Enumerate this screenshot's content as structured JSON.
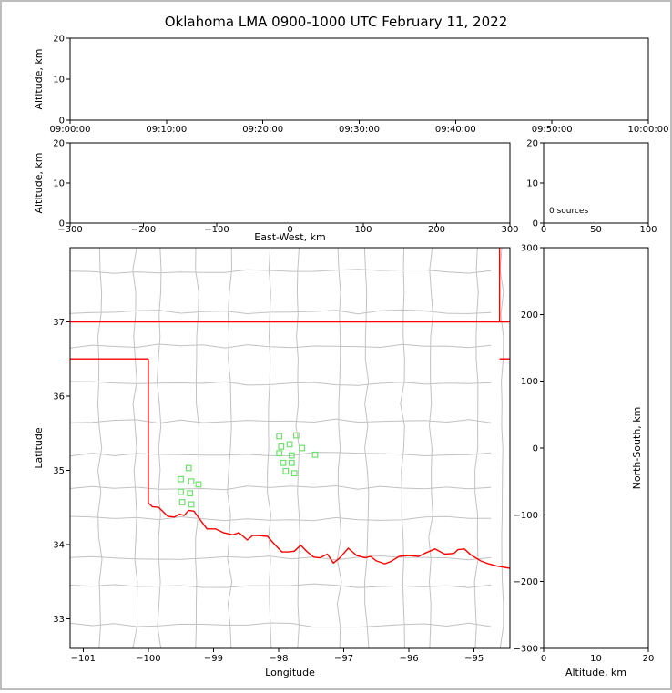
{
  "title": "Oklahoma LMA 0900-1000 UTC February 11, 2022",
  "colors": {
    "state_border": "#ff0000",
    "county_line": "#c2c2c2",
    "station_marker": "#6fdf6f",
    "axis": "#000000",
    "background": "#ffffff",
    "frame_border": "#bdbdbd"
  },
  "chart_data": [
    {
      "id": "time_height",
      "type": "scatter",
      "position": "top",
      "xlabel": "",
      "ylabel": "Altitude, km",
      "x_tick_labels": [
        "09:00:00",
        "09:10:00",
        "09:20:00",
        "09:30:00",
        "09:40:00",
        "09:50:00",
        "10:00:00"
      ],
      "ylim": [
        0,
        20
      ],
      "yticks": [
        0,
        10,
        20
      ],
      "points": []
    },
    {
      "id": "ew_height",
      "type": "scatter",
      "position": "middle-left",
      "xlabel": "East-West, km",
      "ylabel": "Altitude, km",
      "xlim": [
        -300,
        300
      ],
      "xticks": [
        -300,
        -200,
        -100,
        0,
        100,
        200,
        300
      ],
      "ylim": [
        0,
        20
      ],
      "yticks": [
        0,
        10,
        20
      ],
      "points": []
    },
    {
      "id": "source_count",
      "type": "histogram",
      "position": "middle-right",
      "xlim": [
        0,
        100
      ],
      "xticks": [
        0,
        50,
        100
      ],
      "ylim": [
        0,
        20
      ],
      "yticks": [
        0,
        10,
        20
      ],
      "annotation": "0 sources",
      "points": []
    },
    {
      "id": "plan_view",
      "type": "scatter",
      "position": "main-map",
      "xlabel": "Longitude",
      "ylabel": "Latitude",
      "xlim": [
        -101.2,
        -94.45
      ],
      "xticks": [
        -101,
        -100,
        -99,
        -98,
        -97,
        -96,
        -95
      ],
      "ylim": [
        32.6,
        38.0
      ],
      "yticks": [
        33,
        34,
        35,
        36,
        37
      ],
      "marker": "square",
      "points": [
        [
          -99.38,
          35.03
        ],
        [
          -99.5,
          34.88
        ],
        [
          -99.34,
          34.85
        ],
        [
          -99.23,
          34.81
        ],
        [
          -99.5,
          34.71
        ],
        [
          -99.36,
          34.69
        ],
        [
          -99.48,
          34.57
        ],
        [
          -99.34,
          34.54
        ],
        [
          -97.99,
          35.46
        ],
        [
          -97.73,
          35.47
        ],
        [
          -97.96,
          35.32
        ],
        [
          -97.83,
          35.35
        ],
        [
          -97.64,
          35.3
        ],
        [
          -97.99,
          35.23
        ],
        [
          -97.8,
          35.2
        ],
        [
          -97.44,
          35.21
        ],
        [
          -97.93,
          35.1
        ],
        [
          -97.8,
          35.1
        ],
        [
          -97.89,
          34.99
        ],
        [
          -97.76,
          34.96
        ]
      ],
      "map": {
        "borders": [
          {
            "name": "oklahoma-kansas-north",
            "pts": [
              [
                -101.2,
                37.0
              ],
              [
                -94.45,
                37.0
              ]
            ]
          },
          {
            "name": "panhandle-south",
            "pts": [
              [
                -101.2,
                36.5
              ],
              [
                -100.0,
                36.5
              ]
            ]
          },
          {
            "name": "oklahoma-texas-west",
            "pts": [
              [
                -100.0,
                36.5
              ],
              [
                -100.0,
                34.56
              ]
            ]
          },
          {
            "name": "red-river",
            "pts": [
              [
                -100.0,
                34.56
              ],
              [
                -99.94,
                34.51
              ],
              [
                -99.84,
                34.5
              ],
              [
                -99.77,
                34.44
              ],
              [
                -99.7,
                34.38
              ],
              [
                -99.6,
                34.37
              ],
              [
                -99.52,
                34.41
              ],
              [
                -99.45,
                34.39
              ],
              [
                -99.38,
                34.46
              ],
              [
                -99.3,
                34.45
              ],
              [
                -99.21,
                34.34
              ],
              [
                -99.1,
                34.21
              ],
              [
                -98.97,
                34.21
              ],
              [
                -98.85,
                34.16
              ],
              [
                -98.7,
                34.13
              ],
              [
                -98.61,
                34.16
              ],
              [
                -98.48,
                34.06
              ],
              [
                -98.4,
                34.12
              ],
              [
                -98.32,
                34.12
              ],
              [
                -98.17,
                34.11
              ],
              [
                -98.09,
                34.03
              ],
              [
                -97.95,
                33.9
              ],
              [
                -97.85,
                33.9
              ],
              [
                -97.76,
                33.91
              ],
              [
                -97.66,
                33.99
              ],
              [
                -97.56,
                33.9
              ],
              [
                -97.46,
                33.83
              ],
              [
                -97.37,
                33.82
              ],
              [
                -97.25,
                33.87
              ],
              [
                -97.16,
                33.75
              ],
              [
                -97.06,
                33.82
              ],
              [
                -96.93,
                33.95
              ],
              [
                -96.8,
                33.85
              ],
              [
                -96.67,
                33.82
              ],
              [
                -96.59,
                33.84
              ],
              [
                -96.5,
                33.78
              ],
              [
                -96.37,
                33.74
              ],
              [
                -96.28,
                33.77
              ],
              [
                -96.15,
                33.84
              ],
              [
                -96.0,
                33.85
              ],
              [
                -95.85,
                33.84
              ],
              [
                -95.76,
                33.88
              ],
              [
                -95.6,
                33.94
              ],
              [
                -95.45,
                33.87
              ],
              [
                -95.31,
                33.88
              ],
              [
                -95.25,
                33.93
              ],
              [
                -95.15,
                33.94
              ],
              [
                -95.05,
                33.86
              ],
              [
                -94.9,
                33.78
              ],
              [
                -94.78,
                33.74
              ],
              [
                -94.65,
                33.71
              ],
              [
                -94.45,
                33.68
              ]
            ]
          },
          {
            "name": "kansas-missouri",
            "pts": [
              [
                -94.61,
                38.0
              ],
              [
                -94.61,
                37.0
              ]
            ]
          },
          {
            "name": "missouri-arkansas",
            "pts": [
              [
                -94.61,
                36.5
              ],
              [
                -94.45,
                36.5
              ]
            ]
          }
        ]
      }
    },
    {
      "id": "ns_height",
      "type": "scatter",
      "position": "right",
      "xlabel": "Altitude, km",
      "ylabel": "North-South, km",
      "xlim": [
        0,
        20
      ],
      "xticks": [
        0,
        10,
        20
      ],
      "ylim": [
        -300,
        300
      ],
      "yticks": [
        -300,
        -200,
        -100,
        0,
        100,
        200,
        300
      ],
      "points": []
    }
  ]
}
